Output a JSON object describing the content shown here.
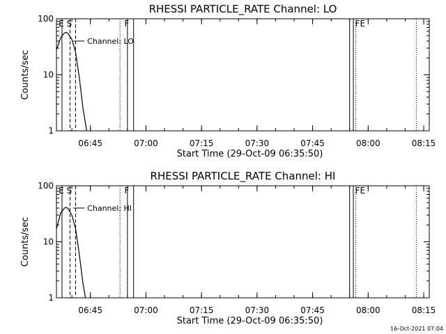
{
  "footer": {
    "timestamp": "16-Oct-2021 07:04"
  },
  "chart_data": [
    {
      "type": "line",
      "title": "RHESSI PARTICLE_RATE Channel: LO",
      "xlabel": "Start Time (29-Oct-09 06:35:50)",
      "ylabel": "Counts/sec",
      "y_scale": "log",
      "ylim": [
        1,
        100
      ],
      "xlim": [
        "06:35:50",
        "08:16:30"
      ],
      "x_ticks": [
        "06:45",
        "07:00",
        "07:15",
        "07:30",
        "07:45",
        "08:00",
        "08:15"
      ],
      "y_ticks": [
        "1",
        "10",
        "100"
      ],
      "series": [
        {
          "name": "Channel: LO",
          "x": [
            "06:35:50",
            "06:37:00",
            "06:38:00",
            "06:38:30",
            "06:39:00",
            "06:40:00",
            "06:41:00",
            "06:42:00",
            "06:43:00",
            "06:44:00"
          ],
          "y": [
            28,
            46,
            56,
            57,
            54,
            43,
            25,
            9,
            2.5,
            1
          ]
        }
      ],
      "markers": [
        {
          "label": "E",
          "time": "06:37:20",
          "style": "solid"
        },
        {
          "label": "S",
          "time": "06:39:30",
          "style": "dashed"
        },
        {
          "label": "",
          "time": "06:41:00",
          "style": "dashed"
        },
        {
          "label": "",
          "time": "06:53:00",
          "style": "dotted"
        },
        {
          "label": "F",
          "time": "06:55:00",
          "style": "solid"
        },
        {
          "label": "",
          "time": "06:56:40",
          "style": "solid"
        },
        {
          "label": "",
          "time": "07:55:00",
          "style": "solid"
        },
        {
          "label": "",
          "time": "07:56:00",
          "style": "solid"
        },
        {
          "label": "FE",
          "time": "07:56:40",
          "style": "dotted"
        },
        {
          "label": "",
          "time": "08:13:00",
          "style": "dotted"
        }
      ]
    },
    {
      "type": "line",
      "title": "RHESSI PARTICLE_RATE Channel: HI",
      "xlabel": "Start Time (29-Oct-09 06:35:50)",
      "ylabel": "Counts/sec",
      "y_scale": "log",
      "ylim": [
        1,
        100
      ],
      "xlim": [
        "06:35:50",
        "08:16:30"
      ],
      "x_ticks": [
        "06:45",
        "07:00",
        "07:15",
        "07:30",
        "07:45",
        "08:00",
        "08:15"
      ],
      "y_ticks": [
        "1",
        "10",
        "100"
      ],
      "series": [
        {
          "name": "Channel: HI",
          "x": [
            "06:35:50",
            "06:37:00",
            "06:38:00",
            "06:38:30",
            "06:39:00",
            "06:40:00",
            "06:41:00",
            "06:42:00",
            "06:43:00",
            "06:43:40"
          ],
          "y": [
            17,
            33,
            40,
            41,
            39,
            30,
            17,
            6,
            1.8,
            1
          ]
        }
      ],
      "markers": [
        {
          "label": "E",
          "time": "06:37:20",
          "style": "solid"
        },
        {
          "label": "S",
          "time": "06:39:30",
          "style": "dashed"
        },
        {
          "label": "",
          "time": "06:41:00",
          "style": "dashed"
        },
        {
          "label": "",
          "time": "06:53:00",
          "style": "dotted"
        },
        {
          "label": "F",
          "time": "06:55:00",
          "style": "solid"
        },
        {
          "label": "",
          "time": "06:56:40",
          "style": "solid"
        },
        {
          "label": "",
          "time": "07:55:00",
          "style": "solid"
        },
        {
          "label": "",
          "time": "07:56:00",
          "style": "solid"
        },
        {
          "label": "FE",
          "time": "07:56:40",
          "style": "dotted"
        },
        {
          "label": "",
          "time": "08:13:00",
          "style": "dotted"
        }
      ]
    }
  ]
}
